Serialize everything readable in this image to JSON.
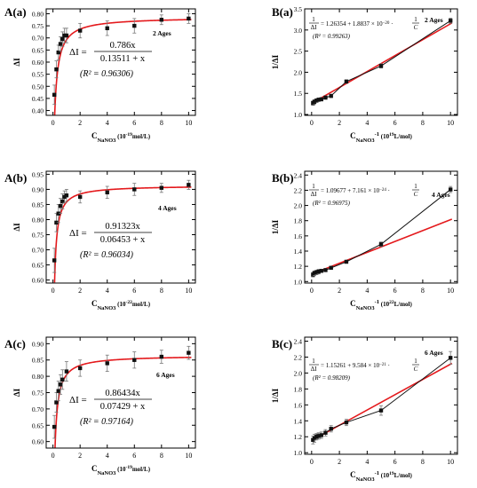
{
  "chart_data": [
    {
      "id": "A(a)",
      "panel_label": "A(a)",
      "type": "line",
      "xlabel_main": "C",
      "xlabel_sub": "NaNO3",
      "xlabel_unit": "(10",
      "xlabel_exp": "-19",
      "xlabel_tail": "mol/L)",
      "ylabel": "ΔI",
      "xlim": [
        -0.5,
        10.5
      ],
      "ylim": [
        0.38,
        0.82
      ],
      "xticks": [
        "0",
        "2",
        "4",
        "6",
        "8",
        "10"
      ],
      "yticks": [
        "0.40",
        "0.45",
        "0.50",
        "0.55",
        "0.60",
        "0.65",
        "0.70",
        "0.75",
        "0.80"
      ],
      "series_label": "2 Ages",
      "eq_lhs": "ΔI =",
      "eq_num": "0.786x",
      "eq_den": "0.13511 + x",
      "r2_text": "(R² = 0.96306)",
      "fit": {
        "a": 0.786,
        "b": 0.13511
      },
      "points": [
        {
          "x": 0.1,
          "y": 0.465,
          "err": 0.04
        },
        {
          "x": 0.25,
          "y": 0.57,
          "err": 0.035
        },
        {
          "x": 0.4,
          "y": 0.64,
          "err": 0.03
        },
        {
          "x": 0.55,
          "y": 0.675,
          "err": 0.03
        },
        {
          "x": 0.7,
          "y": 0.695,
          "err": 0.03
        },
        {
          "x": 0.85,
          "y": 0.71,
          "err": 0.03
        },
        {
          "x": 1.0,
          "y": 0.71,
          "err": 0.03
        },
        {
          "x": 2.0,
          "y": 0.73,
          "err": 0.03
        },
        {
          "x": 4.0,
          "y": 0.74,
          "err": 0.03
        },
        {
          "x": 6.0,
          "y": 0.75,
          "err": 0.03
        },
        {
          "x": 8.0,
          "y": 0.775,
          "err": 0.02
        },
        {
          "x": 10.0,
          "y": 0.78,
          "err": 0.02
        }
      ]
    },
    {
      "id": "B(a)",
      "panel_label": "B(a)",
      "type": "scatter",
      "xlabel_main": "C",
      "xlabel_sub": "NaNO3",
      "xlabel_unit": "-1",
      "xlabel_tail": "(10",
      "xlabel_exp": "19",
      "xlabel_tail2": "L/mol)",
      "ylabel": "1/ΔI",
      "xlim": [
        -0.5,
        10.5
      ],
      "ylim": [
        0.98,
        3.5
      ],
      "xticks": [
        "0",
        "2",
        "4",
        "6",
        "8",
        "10"
      ],
      "yticks": [
        "1.0",
        "1.5",
        "2.0",
        "2.5",
        "3.0",
        "3.5"
      ],
      "series_label": "2 Ages",
      "eq_frac_num": "1",
      "eq_frac_den": "ΔI",
      "eq_rhs": "= 1.26354 + 1.8837 × 10",
      "eq_exp": "−20",
      "eq_tail_num": "1",
      "eq_tail_den": "C",
      "r2_text": "(R² = 0.99263)",
      "fit": {
        "intercept": 1.26354,
        "slope": 0.18837
      },
      "points": [
        {
          "x": 0.1,
          "y": 1.27,
          "err": 0.05
        },
        {
          "x": 0.2,
          "y": 1.3,
          "err": 0.05
        },
        {
          "x": 0.35,
          "y": 1.33,
          "err": 0.04
        },
        {
          "x": 0.5,
          "y": 1.35,
          "err": 0.04
        },
        {
          "x": 0.7,
          "y": 1.36,
          "err": 0.04
        },
        {
          "x": 1.0,
          "y": 1.4,
          "err": 0.04
        },
        {
          "x": 1.4,
          "y": 1.44,
          "err": 0.04
        },
        {
          "x": 2.5,
          "y": 1.78,
          "err": 0.04
        },
        {
          "x": 5.0,
          "y": 2.15,
          "err": 0.05
        },
        {
          "x": 10.0,
          "y": 3.22,
          "err": 0.06
        }
      ]
    },
    {
      "id": "A(b)",
      "panel_label": "A(b)",
      "type": "line",
      "xlabel_main": "C",
      "xlabel_sub": "NaNO3",
      "xlabel_unit": "(10",
      "xlabel_exp": "-22",
      "xlabel_tail": "mol/L)",
      "ylabel": "ΔI",
      "xlim": [
        -0.5,
        10.5
      ],
      "ylim": [
        0.59,
        0.96
      ],
      "xticks": [
        "0",
        "2",
        "4",
        "6",
        "8",
        "10"
      ],
      "yticks": [
        "0.60",
        "0.65",
        "0.70",
        "0.75",
        "0.80",
        "0.85",
        "0.90",
        "0.95"
      ],
      "series_label": "4 Ages",
      "eq_lhs": "ΔI =",
      "eq_num": "0.91323x",
      "eq_den": "0.06453 + x",
      "r2_text": "(R² = 0.96034)",
      "fit": {
        "a": 0.91323,
        "b": 0.06453
      },
      "points": [
        {
          "x": 0.1,
          "y": 0.665,
          "err": 0.04
        },
        {
          "x": 0.25,
          "y": 0.79,
          "err": 0.03
        },
        {
          "x": 0.4,
          "y": 0.82,
          "err": 0.03
        },
        {
          "x": 0.55,
          "y": 0.845,
          "err": 0.025
        },
        {
          "x": 0.7,
          "y": 0.86,
          "err": 0.025
        },
        {
          "x": 0.85,
          "y": 0.875,
          "err": 0.02
        },
        {
          "x": 1.0,
          "y": 0.88,
          "err": 0.02
        },
        {
          "x": 2.0,
          "y": 0.875,
          "err": 0.02
        },
        {
          "x": 4.0,
          "y": 0.89,
          "err": 0.02
        },
        {
          "x": 6.0,
          "y": 0.9,
          "err": 0.02
        },
        {
          "x": 8.0,
          "y": 0.905,
          "err": 0.015
        },
        {
          "x": 10.0,
          "y": 0.915,
          "err": 0.015
        }
      ]
    },
    {
      "id": "B(b)",
      "panel_label": "B(b)",
      "type": "scatter",
      "xlabel_main": "C",
      "xlabel_sub": "NaNO3",
      "xlabel_unit": "-1",
      "xlabel_tail": "(10",
      "xlabel_exp": "22",
      "xlabel_tail2": "L/mol)",
      "ylabel": "1/ΔI",
      "xlim": [
        -0.5,
        10.5
      ],
      "ylim": [
        0.98,
        2.45
      ],
      "xticks": [
        "0",
        "2",
        "4",
        "6",
        "8",
        "10"
      ],
      "yticks": [
        "1.0",
        "1.2",
        "1.4",
        "1.6",
        "1.8",
        "2.0",
        "2.2",
        "2.4"
      ],
      "series_label": "4 Ages",
      "eq_frac_num": "1",
      "eq_frac_den": "ΔI",
      "eq_rhs": "= 1.09677 + 7.161 × 10",
      "eq_exp": "−24",
      "eq_tail_num": "1",
      "eq_tail_den": "C",
      "r2_text": "(R² = 0.96975)",
      "fit": {
        "intercept": 1.09677,
        "slope": 0.07161
      },
      "points": [
        {
          "x": 0.1,
          "y": 1.09,
          "err": 0.03
        },
        {
          "x": 0.2,
          "y": 1.11,
          "err": 0.03
        },
        {
          "x": 0.35,
          "y": 1.12,
          "err": 0.03
        },
        {
          "x": 0.5,
          "y": 1.13,
          "err": 0.03
        },
        {
          "x": 0.7,
          "y": 1.14,
          "err": 0.02
        },
        {
          "x": 1.0,
          "y": 1.15,
          "err": 0.02
        },
        {
          "x": 1.4,
          "y": 1.18,
          "err": 0.02
        },
        {
          "x": 2.5,
          "y": 1.26,
          "err": 0.02
        },
        {
          "x": 5.0,
          "y": 1.49,
          "err": 0.03
        },
        {
          "x": 10.0,
          "y": 2.21,
          "err": 0.04
        }
      ]
    },
    {
      "id": "A(c)",
      "panel_label": "A(c)",
      "type": "line",
      "xlabel_main": "C",
      "xlabel_sub": "NaNO3",
      "xlabel_unit": "(10",
      "xlabel_exp": "-19",
      "xlabel_tail": "mol/L)",
      "ylabel": "ΔI",
      "xlim": [
        -0.5,
        10.5
      ],
      "ylim": [
        0.58,
        0.92
      ],
      "xticks": [
        "0",
        "2",
        "4",
        "6",
        "8",
        "10"
      ],
      "yticks": [
        "0.60",
        "0.65",
        "0.70",
        "0.75",
        "0.80",
        "0.85",
        "0.90"
      ],
      "series_label": "6 Ages",
      "eq_lhs": "ΔI =",
      "eq_num": "0.86434x",
      "eq_den": "0.07429 + x",
      "r2_text": "(R² = 0.97164)",
      "fit": {
        "a": 0.86434,
        "b": 0.07429
      },
      "points": [
        {
          "x": 0.1,
          "y": 0.645,
          "err": 0.035
        },
        {
          "x": 0.25,
          "y": 0.72,
          "err": 0.03
        },
        {
          "x": 0.4,
          "y": 0.755,
          "err": 0.03
        },
        {
          "x": 0.55,
          "y": 0.775,
          "err": 0.03
        },
        {
          "x": 0.7,
          "y": 0.79,
          "err": 0.03
        },
        {
          "x": 1.0,
          "y": 0.815,
          "err": 0.03
        },
        {
          "x": 2.0,
          "y": 0.825,
          "err": 0.025
        },
        {
          "x": 4.0,
          "y": 0.84,
          "err": 0.025
        },
        {
          "x": 6.0,
          "y": 0.85,
          "err": 0.025
        },
        {
          "x": 8.0,
          "y": 0.86,
          "err": 0.02
        },
        {
          "x": 10.0,
          "y": 0.872,
          "err": 0.02
        }
      ]
    },
    {
      "id": "B(c)",
      "panel_label": "B(c)",
      "type": "scatter",
      "xlabel_main": "C",
      "xlabel_sub": "NaNO3",
      "xlabel_unit": "-1",
      "xlabel_tail": "(10",
      "xlabel_exp": "19",
      "xlabel_tail2": "L/mol)",
      "ylabel": "1/ΔI",
      "xlim": [
        -0.5,
        10.5
      ],
      "ylim": [
        0.98,
        2.45
      ],
      "xticks": [
        "0",
        "2",
        "4",
        "6",
        "8",
        "10"
      ],
      "yticks": [
        "1.0",
        "1.2",
        "1.4",
        "1.6",
        "1.8",
        "2.0",
        "2.2",
        "2.4"
      ],
      "series_label": "6 Ages",
      "eq_frac_num": "1",
      "eq_frac_den": "ΔI",
      "eq_rhs": "= 1.15261 + 9.584 × 10",
      "eq_exp": "−21",
      "eq_tail_num": "1",
      "eq_tail_den": "C",
      "r2_text": "(R² = 0.98209)",
      "fit": {
        "intercept": 1.15261,
        "slope": 0.09584
      },
      "points": [
        {
          "x": 0.1,
          "y": 1.16,
          "err": 0.05
        },
        {
          "x": 0.2,
          "y": 1.18,
          "err": 0.05
        },
        {
          "x": 0.35,
          "y": 1.2,
          "err": 0.04
        },
        {
          "x": 0.5,
          "y": 1.21,
          "err": 0.04
        },
        {
          "x": 0.7,
          "y": 1.22,
          "err": 0.04
        },
        {
          "x": 1.0,
          "y": 1.25,
          "err": 0.04
        },
        {
          "x": 1.4,
          "y": 1.3,
          "err": 0.04
        },
        {
          "x": 2.5,
          "y": 1.38,
          "err": 0.04
        },
        {
          "x": 5.0,
          "y": 1.53,
          "err": 0.06
        },
        {
          "x": 10.0,
          "y": 2.19,
          "err": 0.08
        }
      ]
    }
  ],
  "colors": {
    "fit_line": "#e4191c",
    "marker": "#111111",
    "error_bar": "#777777",
    "axis": "#000000"
  }
}
